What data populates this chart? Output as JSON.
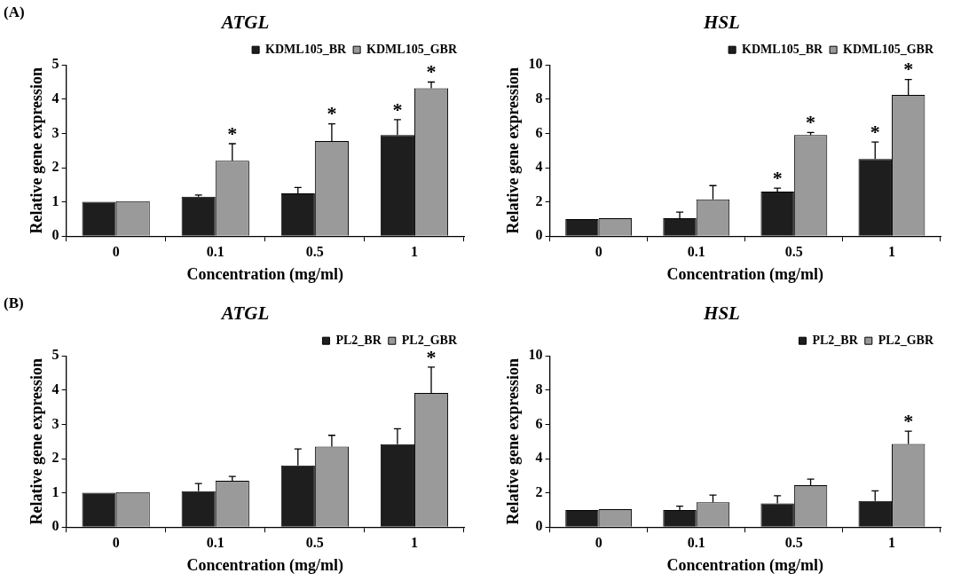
{
  "chart_data": [
    {
      "type": "bar",
      "title": "ATGL",
      "xlabel": "Concentration (mg/ml)",
      "ylabel": "Relative gene expression",
      "categories": [
        "0",
        "0.1",
        "0.5",
        "1"
      ],
      "ylim": [
        0,
        5
      ],
      "yticks": [
        0,
        1,
        2,
        3,
        4,
        5
      ],
      "grid": false,
      "legend": "top right",
      "series": [
        {
          "name": "KDML105_BR",
          "color": "#1e1e1e",
          "values": [
            1.0,
            1.15,
            1.25,
            2.95
          ],
          "errors": [
            null,
            [
              1.15,
              1.2
            ],
            [
              1.25,
              1.42
            ],
            [
              2.95,
              3.4
            ]
          ],
          "value_labels": [
            null,
            null,
            null,
            "*"
          ]
        },
        {
          "name": "KDML105_GBR",
          "color": "#9a9a9a",
          "values": [
            1.02,
            2.2,
            2.78,
            4.32
          ],
          "errors": [
            null,
            [
              2.2,
              2.7
            ],
            [
              2.78,
              3.28
            ],
            [
              4.32,
              4.5
            ]
          ],
          "value_labels": [
            null,
            "*",
            "*",
            "*"
          ]
        }
      ],
      "annotations": [
        "(A)"
      ]
    },
    {
      "type": "bar",
      "title": "HSL",
      "xlabel": "Concentration (mg/ml)",
      "ylabel": "Relative gene expression",
      "categories": [
        "0",
        "0.1",
        "0.5",
        "1"
      ],
      "ylim": [
        0,
        10
      ],
      "yticks": [
        0,
        2,
        4,
        6,
        8,
        10
      ],
      "grid": false,
      "legend": "top right",
      "series": [
        {
          "name": "KDML105_BR",
          "color": "#1e1e1e",
          "values": [
            1.0,
            1.05,
            2.6,
            4.5
          ],
          "errors": [
            null,
            [
              1.05,
              1.4
            ],
            [
              2.6,
              2.8
            ],
            [
              4.5,
              5.5
            ]
          ],
          "value_labels": [
            null,
            null,
            "*",
            "*"
          ]
        },
        {
          "name": "KDML105_GBR",
          "color": "#9a9a9a",
          "values": [
            1.05,
            2.15,
            5.9,
            8.25
          ],
          "errors": [
            null,
            [
              2.15,
              2.95
            ],
            [
              5.9,
              6.05
            ],
            [
              8.25,
              9.15
            ]
          ],
          "value_labels": [
            null,
            null,
            "*",
            "*"
          ]
        }
      ]
    },
    {
      "type": "bar",
      "title": "ATGL",
      "xlabel": "Concentration (mg/ml)",
      "ylabel": "Relative gene expression",
      "categories": [
        "0",
        "0.1",
        "0.5",
        "1"
      ],
      "ylim": [
        0,
        5
      ],
      "yticks": [
        0,
        1,
        2,
        3,
        4,
        5
      ],
      "grid": false,
      "legend": "top right",
      "series": [
        {
          "name": "PL2_BR",
          "color": "#1e1e1e",
          "values": [
            1.0,
            1.05,
            1.8,
            2.42
          ],
          "errors": [
            null,
            [
              1.05,
              1.27
            ],
            [
              1.8,
              2.28
            ],
            [
              2.42,
              2.87
            ]
          ]
        },
        {
          "name": "PL2_GBR",
          "color": "#9a9a9a",
          "values": [
            1.02,
            1.35,
            2.35,
            3.92
          ],
          "errors": [
            null,
            [
              1.35,
              1.48
            ],
            [
              2.35,
              2.68
            ],
            [
              3.92,
              4.67
            ]
          ],
          "value_labels": [
            null,
            null,
            null,
            "*"
          ]
        }
      ],
      "annotations": [
        "(B)"
      ]
    },
    {
      "type": "bar",
      "title": "HSL",
      "xlabel": "Concentration (mg/ml)",
      "ylabel": "Relative gene expression",
      "categories": [
        "0",
        "0.1",
        "0.5",
        "1"
      ],
      "ylim": [
        0,
        10
      ],
      "yticks": [
        0,
        2,
        4,
        6,
        8,
        10
      ],
      "grid": false,
      "legend": "top right",
      "series": [
        {
          "name": "PL2_BR",
          "color": "#1e1e1e",
          "values": [
            1.0,
            1.0,
            1.38,
            1.52
          ],
          "errors": [
            null,
            [
              1.0,
              1.22
            ],
            [
              1.38,
              1.83
            ],
            [
              1.52,
              2.12
            ]
          ]
        },
        {
          "name": "PL2_GBR",
          "color": "#9a9a9a",
          "values": [
            1.05,
            1.45,
            2.45,
            4.85
          ],
          "errors": [
            null,
            [
              1.45,
              1.87
            ],
            [
              2.45,
              2.8
            ],
            [
              4.85,
              5.6
            ]
          ],
          "value_labels": [
            null,
            null,
            null,
            "*"
          ]
        }
      ]
    }
  ]
}
